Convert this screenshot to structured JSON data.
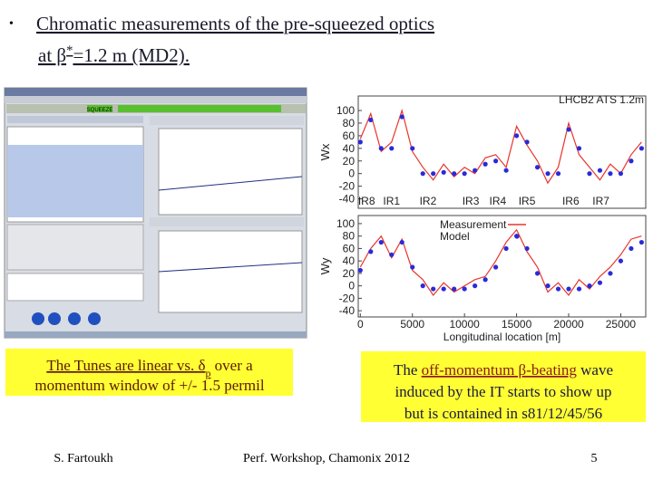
{
  "slide": {
    "bullet": "•",
    "title_line1": [
      {
        "text": "Chromatic measurements of the pre-squeezed optics",
        "underline": true
      }
    ],
    "title_line2": [
      {
        "text": "at β",
        "underline": true
      },
      {
        "text": "*",
        "superscript": true,
        "underline": true
      },
      {
        "text": "=1.2 m (MD2).",
        "underline": true
      }
    ]
  },
  "screenshot": {
    "button": "SQUEEZE"
  },
  "chart_data": [
    {
      "type": "line",
      "title": "LHCB2 ATS 1.2m",
      "ylabel": "Wx",
      "x": [
        0,
        1000,
        2000,
        3000,
        4000,
        5000,
        6000,
        7000,
        8000,
        9000,
        10000,
        11000,
        12000,
        13000,
        14000,
        15000,
        16000,
        17000,
        18000,
        19000,
        20000,
        21000,
        22000,
        23000,
        24000,
        25000,
        26000,
        27000
      ],
      "series": [
        {
          "name": "Measurement",
          "color": "#e8352a",
          "mode": "line",
          "values": [
            55,
            95,
            35,
            50,
            100,
            35,
            10,
            -10,
            15,
            -5,
            10,
            0,
            25,
            30,
            10,
            75,
            45,
            20,
            -15,
            10,
            80,
            30,
            10,
            -10,
            15,
            0,
            30,
            50
          ]
        },
        {
          "name": "Model",
          "color": "#2a2ad8",
          "mode": "markers",
          "values": [
            50,
            85,
            40,
            40,
            90,
            40,
            0,
            0,
            2,
            0,
            0,
            5,
            15,
            20,
            5,
            60,
            50,
            10,
            0,
            0,
            70,
            40,
            0,
            5,
            0,
            0,
            20,
            40
          ]
        }
      ],
      "annotations": [
        {
          "label": "IR8",
          "x": 600
        },
        {
          "label": "IR1",
          "x": 3000
        },
        {
          "label": "IR2",
          "x": 6500
        },
        {
          "label": "IR3",
          "x": 10600
        },
        {
          "label": "IR4",
          "x": 13200
        },
        {
          "label": "IR5",
          "x": 16000
        },
        {
          "label": "IR6",
          "x": 20200
        },
        {
          "label": "IR7",
          "x": 23100
        }
      ],
      "xlim": [
        -200,
        27400
      ],
      "ylim": [
        -55,
        123
      ],
      "yticks": [
        -40,
        -20,
        0,
        20,
        40,
        60,
        80,
        100
      ]
    },
    {
      "type": "line",
      "ylabel": "Wy",
      "xlabel": "Longitudinal location [m]",
      "legend": "top-left",
      "x": [
        0,
        1000,
        2000,
        3000,
        4000,
        5000,
        6000,
        7000,
        8000,
        9000,
        10000,
        11000,
        12000,
        13000,
        14000,
        15000,
        16000,
        17000,
        18000,
        19000,
        20000,
        21000,
        22000,
        23000,
        24000,
        25000,
        26000,
        27000
      ],
      "series": [
        {
          "name": "Measurement",
          "color": "#e8352a",
          "mode": "line",
          "values": [
            30,
            60,
            80,
            45,
            75,
            25,
            10,
            -15,
            5,
            -10,
            0,
            10,
            15,
            40,
            70,
            90,
            55,
            30,
            -10,
            5,
            -15,
            10,
            -5,
            15,
            30,
            50,
            75,
            80
          ]
        },
        {
          "name": "Model",
          "color": "#2a2ad8",
          "mode": "markers",
          "values": [
            25,
            55,
            70,
            50,
            70,
            30,
            0,
            -5,
            -5,
            -5,
            -5,
            0,
            10,
            30,
            60,
            80,
            60,
            20,
            0,
            -5,
            -5,
            -5,
            0,
            5,
            20,
            40,
            60,
            70
          ]
        }
      ],
      "xlim": [
        -200,
        27400
      ],
      "ylim": [
        -50,
        113
      ],
      "yticks": [
        -40,
        -20,
        0,
        20,
        40,
        60,
        80,
        100
      ],
      "xticks": [
        0,
        5000,
        10000,
        15000,
        20000,
        25000
      ]
    }
  ],
  "captions": {
    "left": [
      [
        {
          "text": "The Tunes are linear vs. δ",
          "underline": true
        },
        {
          "text": "p",
          "subscript": true,
          "underline": true
        },
        {
          "text": " over a"
        }
      ],
      [
        {
          "text": "momentum window of +/- 1.5 permil"
        }
      ]
    ],
    "right": [
      [
        {
          "text": "The "
        },
        {
          "text": "off-momentum β-beating",
          "underline": true,
          "color": "#8b1a1a"
        },
        {
          "text": " wave"
        }
      ],
      [
        {
          "text": "induced by the IT starts to show up"
        }
      ],
      [
        {
          "text": "but is contained in s81/12/45/56"
        }
      ]
    ]
  },
  "footer": {
    "author": "S. Fartoukh",
    "event": "Perf. Workshop, Chamonix 2012",
    "page": "5"
  }
}
